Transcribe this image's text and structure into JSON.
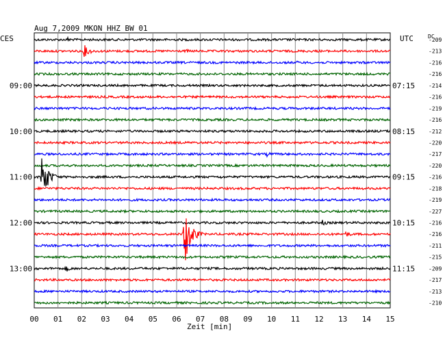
{
  "header": {
    "title": "Aug 7,2009   MKON HHZ BW 01",
    "left_label": "CES",
    "right_label": "UTC",
    "dc_label": "DC"
  },
  "chart_data": {
    "type": "line",
    "title": "Aug 7,2009   MKON HHZ BW 01",
    "xlabel": "Zeit [min]",
    "xlim": [
      0,
      15
    ],
    "x_ticks": [
      "00",
      "01",
      "02",
      "03",
      "04",
      "05",
      "06",
      "07",
      "08",
      "09",
      "10",
      "11",
      "12",
      "13",
      "14",
      "15"
    ],
    "grid": true,
    "left_time_labels": [
      {
        "row": 4,
        "text": "09:00"
      },
      {
        "row": 8,
        "text": "10:00"
      },
      {
        "row": 12,
        "text": "11:00"
      },
      {
        "row": 16,
        "text": "12:00"
      },
      {
        "row": 20,
        "text": "13:00"
      }
    ],
    "right_time_labels": [
      {
        "row": 4,
        "text": "07:15"
      },
      {
        "row": 8,
        "text": "08:15"
      },
      {
        "row": 12,
        "text": "09:15"
      },
      {
        "row": 16,
        "text": "10:15"
      },
      {
        "row": 20,
        "text": "11:15"
      }
    ],
    "dc_offsets": [
      -209,
      -213,
      -216,
      -216,
      -214,
      -216,
      -219,
      -216,
      -212,
      -220,
      -217,
      -220,
      -216,
      -218,
      -219,
      -227,
      -216,
      -216,
      -211,
      -215,
      -209,
      -217,
      -213,
      -210
    ],
    "trace_colors": [
      "#000000",
      "#ff0000",
      "#0000ff",
      "#006400"
    ],
    "traces_count": 24,
    "events": [
      {
        "row": 0,
        "minute": 1.4,
        "amplitude": 4
      },
      {
        "row": 1,
        "minute": 2.1,
        "amplitude": 10
      },
      {
        "row": 1,
        "minute": 6.4,
        "amplitude": 3
      },
      {
        "row": 2,
        "minute": 11.0,
        "amplitude": 3
      },
      {
        "row": 10,
        "minute": 9.8,
        "amplitude": 4
      },
      {
        "row": 12,
        "minute": 0.3,
        "amplitude": 40
      },
      {
        "row": 12,
        "minute": 7.8,
        "amplitude": 3
      },
      {
        "row": 16,
        "minute": 12.1,
        "amplitude": 5
      },
      {
        "row": 17,
        "minute": 6.3,
        "amplitude": 55
      },
      {
        "row": 17,
        "minute": 13.1,
        "amplitude": 5
      },
      {
        "row": 20,
        "minute": 1.3,
        "amplitude": 6
      }
    ]
  }
}
